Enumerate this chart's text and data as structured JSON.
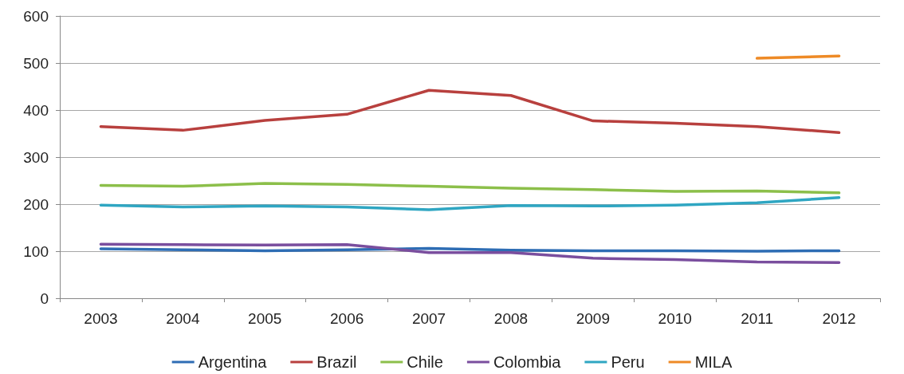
{
  "chart_data": {
    "type": "line",
    "categories": [
      "2003",
      "2004",
      "2005",
      "2006",
      "2007",
      "2008",
      "2009",
      "2010",
      "2011",
      "2012"
    ],
    "series": [
      {
        "name": "Argentina",
        "color": "#2e6db4",
        "values": [
          105,
          103,
          101,
          103,
          106,
          102,
          101,
          101,
          100,
          101
        ]
      },
      {
        "name": "Brazil",
        "color": "#b8403e",
        "values": [
          365,
          357,
          378,
          391,
          442,
          431,
          377,
          372,
          365,
          352
        ]
      },
      {
        "name": "Chile",
        "color": "#8cbf4a",
        "values": [
          240,
          238,
          244,
          242,
          238,
          234,
          231,
          227,
          228,
          224
        ]
      },
      {
        "name": "Colombia",
        "color": "#7a4e9e",
        "values": [
          115,
          114,
          113,
          114,
          97,
          97,
          85,
          82,
          77,
          76
        ]
      },
      {
        "name": "Peru",
        "color": "#2fa6c2",
        "values": [
          198,
          194,
          196,
          194,
          188,
          197,
          196,
          198,
          203,
          214
        ]
      },
      {
        "name": "MILA",
        "color": "#ee8a26",
        "values": [
          null,
          null,
          null,
          null,
          null,
          null,
          null,
          null,
          510,
          515
        ]
      }
    ],
    "ylim": [
      0,
      600
    ],
    "yticks": [
      0,
      100,
      200,
      300,
      400,
      500,
      600
    ],
    "grid": "y",
    "legend": "bottom",
    "marker": "none",
    "line_style": "solid"
  }
}
